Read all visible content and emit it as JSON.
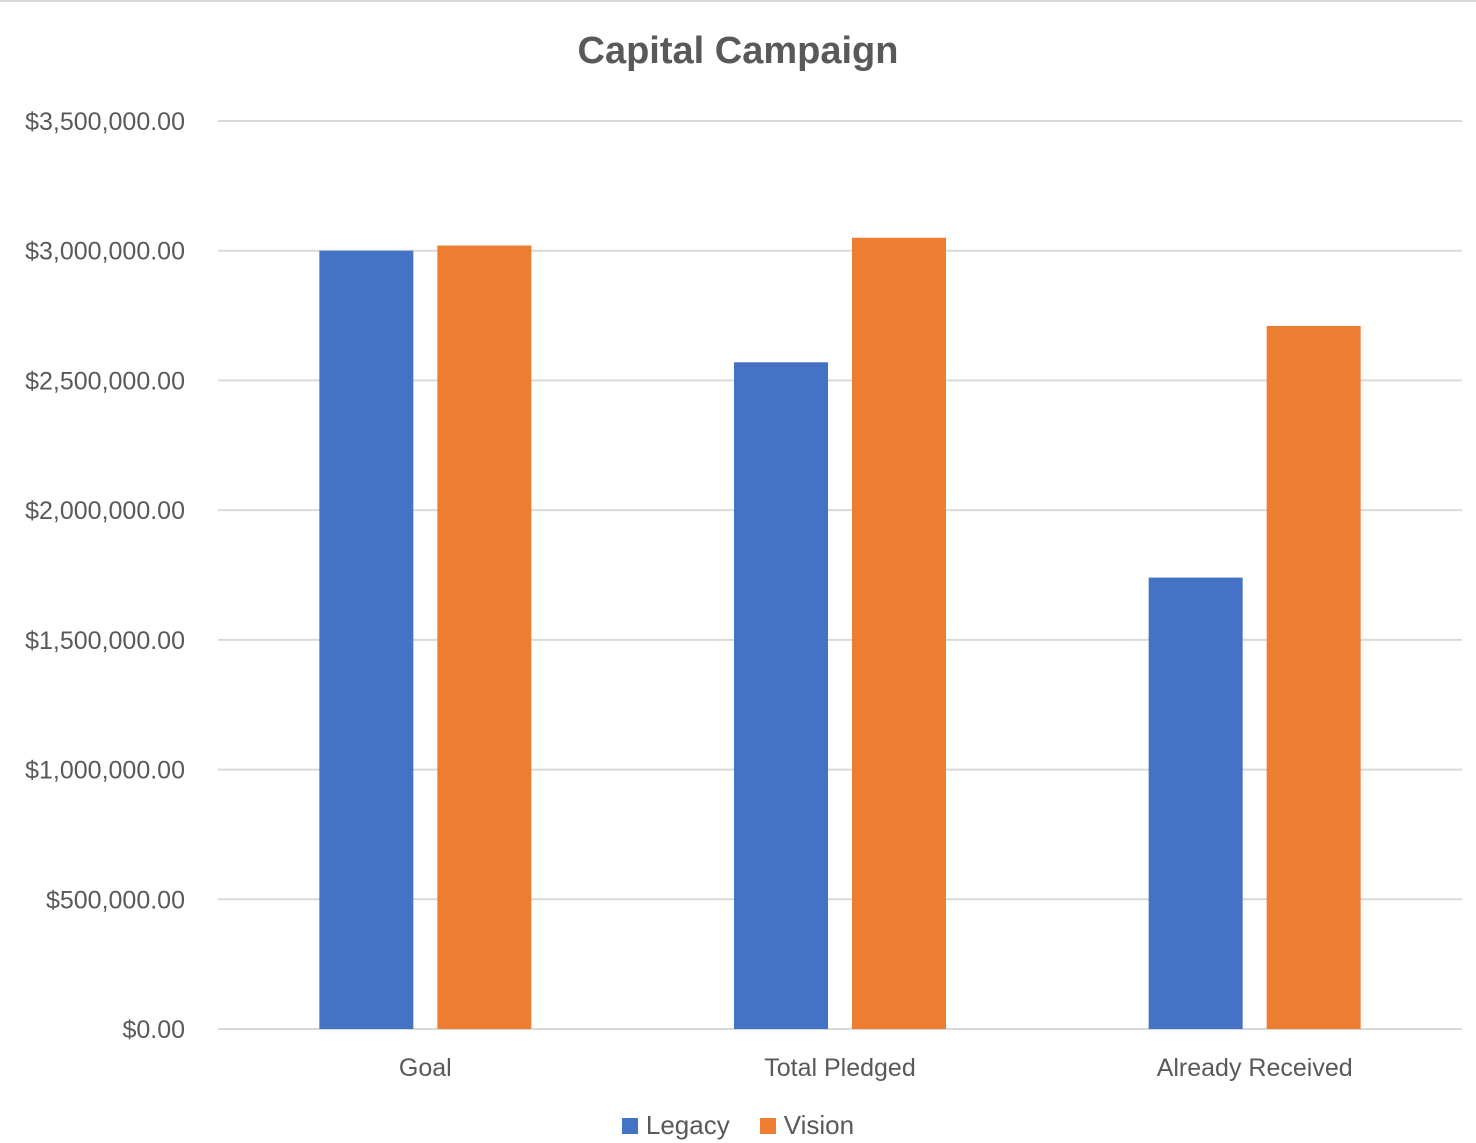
{
  "chart_data": {
    "type": "bar",
    "title": "Capital Campaign",
    "categories": [
      "Goal",
      "Total Pledged",
      "Already Received"
    ],
    "series": [
      {
        "name": "Legacy",
        "color": "#4472C4",
        "values": [
          3000000,
          2570000,
          1740000
        ]
      },
      {
        "name": "Vision",
        "color": "#ED7D31",
        "values": [
          3020000,
          3050000,
          2710000
        ]
      }
    ],
    "y_ticks": [
      0,
      500000,
      1000000,
      1500000,
      2000000,
      2500000,
      3000000,
      3500000
    ],
    "y_tick_labels": [
      "$0.00",
      "$500,000.00",
      "$1,000,000.00",
      "$1,500,000.00",
      "$2,000,000.00",
      "$2,500,000.00",
      "$3,000,000.00",
      "$3,500,000.00"
    ],
    "ylim": [
      0,
      3500000
    ],
    "xlabel": "",
    "ylabel": "",
    "grid": true,
    "legend_position": "bottom",
    "colors": {
      "gridline": "#d9d9d9",
      "text": "#595959"
    }
  }
}
